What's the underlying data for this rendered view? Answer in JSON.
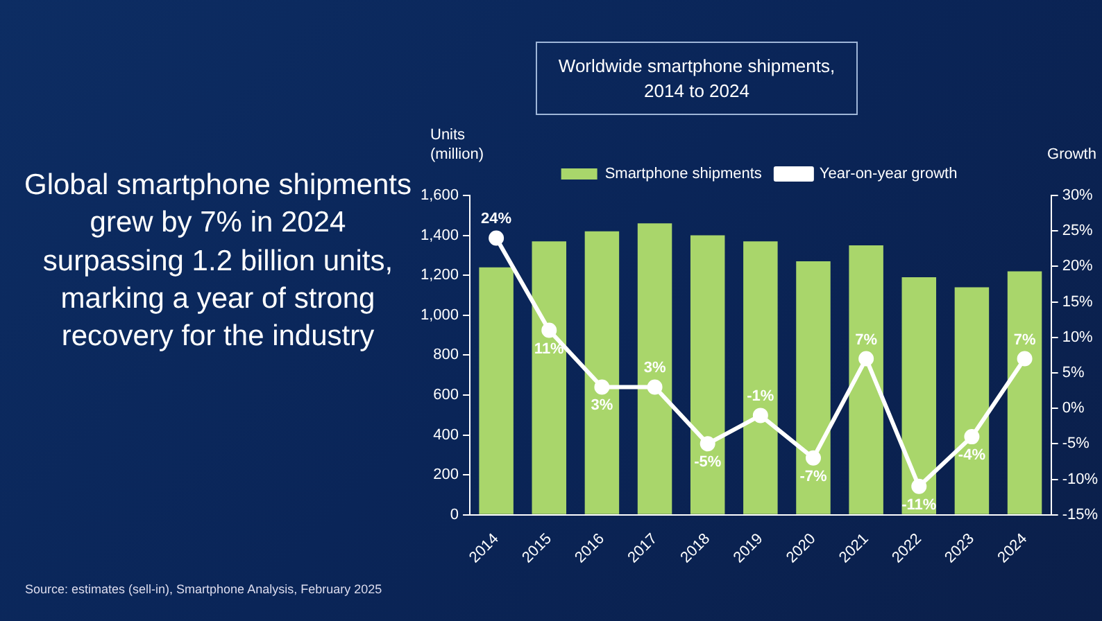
{
  "chart_data": {
    "type": "bar",
    "title": "Worldwide smartphone shipments, 2014 to 2024",
    "ylabel": "Units (million)",
    "y2label": "Growth",
    "categories": [
      "2014",
      "2015",
      "2016",
      "2017",
      "2018",
      "2019",
      "2020",
      "2021",
      "2022",
      "2023",
      "2024"
    ],
    "series": [
      {
        "name": "Smartphone shipments",
        "color": "#a9d66b",
        "values": [
          1240,
          1370,
          1420,
          1460,
          1400,
          1370,
          1270,
          1350,
          1190,
          1140,
          1220
        ]
      },
      {
        "name": "Year-on-year growth",
        "type": "line",
        "axis": "y2",
        "color": "#ffffff",
        "marker": "circle",
        "values": [
          24,
          11,
          3,
          3,
          -5,
          -1,
          -7,
          7,
          -11,
          -4,
          7
        ],
        "value_labels": [
          "24%",
          "11%",
          "3%",
          "3%",
          "-5%",
          "-1%",
          "-7%",
          "7%",
          "-11%",
          "-4%",
          "7%"
        ]
      }
    ],
    "ylim": [
      0,
      1600
    ],
    "yticks": [
      0,
      200,
      400,
      600,
      800,
      {
        "value": 1000,
        "label": "1,000"
      },
      {
        "value": 1200,
        "label": "1,200"
      },
      {
        "value": 1400,
        "label": "1,400"
      },
      {
        "value": 1600,
        "label": "1,600"
      }
    ],
    "y2lim": [
      -15,
      30
    ],
    "y2ticks": [
      {
        "value": -15,
        "label": "-15%"
      },
      {
        "value": -10,
        "label": "-10%"
      },
      {
        "value": -5,
        "label": "-5%"
      },
      {
        "value": 0,
        "label": "0%"
      },
      {
        "value": 5,
        "label": "5%"
      },
      {
        "value": 10,
        "label": "10%"
      },
      {
        "value": 15,
        "label": "15%"
      },
      {
        "value": 20,
        "label": "20%"
      },
      {
        "value": 25,
        "label": "25%"
      },
      {
        "value": 30,
        "label": "30%"
      }
    ],
    "legend": "top",
    "grid": false,
    "annotations": [
      "Global smartphone shipments grew by 7% in 2024 surpassing 1.2 billion units, marking a year of strong recovery for the industry",
      "Source: estimates (sell-in), Smartphone Analysis, February 2025"
    ]
  }
}
